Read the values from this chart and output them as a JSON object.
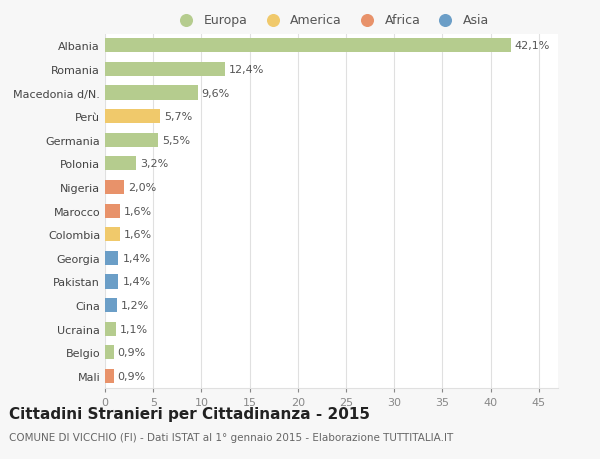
{
  "categories": [
    "Albania",
    "Romania",
    "Macedonia d/N.",
    "Perù",
    "Germania",
    "Polonia",
    "Nigeria",
    "Marocco",
    "Colombia",
    "Georgia",
    "Pakistan",
    "Cina",
    "Ucraina",
    "Belgio",
    "Mali"
  ],
  "values": [
    42.1,
    12.4,
    9.6,
    5.7,
    5.5,
    3.2,
    2.0,
    1.6,
    1.6,
    1.4,
    1.4,
    1.2,
    1.1,
    0.9,
    0.9
  ],
  "labels": [
    "42,1%",
    "12,4%",
    "9,6%",
    "5,7%",
    "5,5%",
    "3,2%",
    "2,0%",
    "1,6%",
    "1,6%",
    "1,4%",
    "1,4%",
    "1,2%",
    "1,1%",
    "0,9%",
    "0,9%"
  ],
  "continent": [
    "Europa",
    "Europa",
    "Europa",
    "America",
    "Europa",
    "Europa",
    "Africa",
    "Africa",
    "America",
    "Asia",
    "Asia",
    "Asia",
    "Europa",
    "Europa",
    "Africa"
  ],
  "colors": {
    "Europa": "#b5cc8e",
    "America": "#f0c96b",
    "Africa": "#e8926a",
    "Asia": "#6b9ec7"
  },
  "legend_order": [
    "Europa",
    "America",
    "Africa",
    "Asia"
  ],
  "title": "Cittadini Stranieri per Cittadinanza - 2015",
  "subtitle": "COMUNE DI VICCHIO (FI) - Dati ISTAT al 1° gennaio 2015 - Elaborazione TUTTITALIA.IT",
  "xlim": [
    0,
    47
  ],
  "xticks": [
    0,
    5,
    10,
    15,
    20,
    25,
    30,
    35,
    40,
    45
  ],
  "background_color": "#f7f7f7",
  "plot_bg_color": "#ffffff",
  "grid_color": "#e0e0e0",
  "bar_height": 0.6,
  "tick_fontsize": 8,
  "title_fontsize": 11,
  "subtitle_fontsize": 7.5,
  "value_label_fontsize": 8
}
